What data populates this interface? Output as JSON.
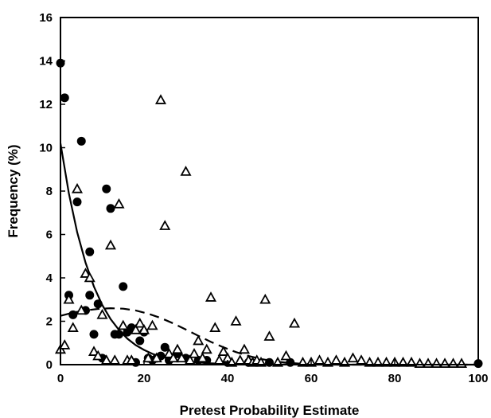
{
  "chart_data": {
    "type": "scatter",
    "xlabel": "Pretest Probability Estimate",
    "ylabel": "Frequency (%)",
    "xlim": [
      0,
      100
    ],
    "ylim": [
      0,
      16
    ],
    "x_ticks": [
      0,
      20,
      40,
      60,
      80,
      100
    ],
    "y_ticks": [
      0,
      2,
      4,
      6,
      8,
      10,
      12,
      14,
      16
    ],
    "grid": false,
    "legend": null,
    "series": [
      {
        "marker": "filled-circle",
        "color": "#000000",
        "points": [
          [
            0,
            13.9
          ],
          [
            1,
            12.3
          ],
          [
            2,
            3.2
          ],
          [
            3,
            2.3
          ],
          [
            4,
            7.5
          ],
          [
            5,
            10.3
          ],
          [
            6,
            2.5
          ],
          [
            7,
            5.2
          ],
          [
            7,
            3.2
          ],
          [
            8,
            1.4
          ],
          [
            9,
            2.8
          ],
          [
            10,
            0.3
          ],
          [
            11,
            8.1
          ],
          [
            12,
            7.2
          ],
          [
            13,
            1.4
          ],
          [
            14,
            1.4
          ],
          [
            15,
            3.6
          ],
          [
            16,
            1.5
          ],
          [
            17,
            1.7
          ],
          [
            18,
            0.1
          ],
          [
            19,
            1.1
          ],
          [
            20,
            1.5
          ],
          [
            21,
            0.3
          ],
          [
            22,
            0.2
          ],
          [
            23,
            0.3
          ],
          [
            24,
            0.4
          ],
          [
            25,
            0.8
          ],
          [
            26,
            0.2
          ],
          [
            28,
            0.5
          ],
          [
            30,
            0.3
          ],
          [
            33,
            0.2
          ],
          [
            35,
            0.2
          ],
          [
            40,
            0.1
          ],
          [
            45,
            0.1
          ],
          [
            50,
            0.1
          ],
          [
            55,
            0.1
          ],
          [
            100,
            0.05
          ]
        ]
      },
      {
        "marker": "open-triangle",
        "color": "#000000",
        "points": [
          [
            0,
            0.7
          ],
          [
            1,
            0.9
          ],
          [
            2,
            3.0
          ],
          [
            3,
            1.7
          ],
          [
            4,
            8.1
          ],
          [
            5,
            2.5
          ],
          [
            6,
            4.2
          ],
          [
            7,
            4.0
          ],
          [
            8,
            0.6
          ],
          [
            9,
            0.4
          ],
          [
            10,
            2.3
          ],
          [
            11,
            0.2
          ],
          [
            12,
            5.5
          ],
          [
            13,
            0.2
          ],
          [
            14,
            7.4
          ],
          [
            15,
            1.8
          ],
          [
            16,
            0.2
          ],
          [
            17,
            0.2
          ],
          [
            18,
            1.6
          ],
          [
            19,
            1.9
          ],
          [
            20,
            1.6
          ],
          [
            21,
            0.3
          ],
          [
            22,
            1.8
          ],
          [
            23,
            0.3
          ],
          [
            24,
            12.2
          ],
          [
            25,
            6.4
          ],
          [
            26,
            0.5
          ],
          [
            27,
            0.3
          ],
          [
            28,
            0.7
          ],
          [
            29,
            0.3
          ],
          [
            30,
            8.9
          ],
          [
            31,
            0.2
          ],
          [
            32,
            0.5
          ],
          [
            33,
            1.1
          ],
          [
            34,
            0.3
          ],
          [
            35,
            0.7
          ],
          [
            36,
            3.1
          ],
          [
            37,
            1.7
          ],
          [
            38,
            0.2
          ],
          [
            39,
            0.6
          ],
          [
            40,
            0.3
          ],
          [
            41,
            0.1
          ],
          [
            42,
            2.0
          ],
          [
            43,
            0.2
          ],
          [
            44,
            0.7
          ],
          [
            45,
            0.2
          ],
          [
            46,
            0.1
          ],
          [
            47,
            0.2
          ],
          [
            48,
            0.1
          ],
          [
            49,
            3.0
          ],
          [
            50,
            1.3
          ],
          [
            52,
            0.1
          ],
          [
            54,
            0.4
          ],
          [
            56,
            1.9
          ],
          [
            58,
            0.1
          ],
          [
            60,
            0.1
          ],
          [
            62,
            0.2
          ],
          [
            64,
            0.1
          ],
          [
            66,
            0.2
          ],
          [
            68,
            0.1
          ],
          [
            70,
            0.3
          ],
          [
            72,
            0.2
          ],
          [
            74,
            0.1
          ],
          [
            76,
            0.1
          ],
          [
            78,
            0.1
          ],
          [
            80,
            0.1
          ],
          [
            82,
            0.1
          ],
          [
            84,
            0.1
          ],
          [
            86,
            0.05
          ],
          [
            88,
            0.05
          ],
          [
            90,
            0.05
          ],
          [
            92,
            0.05
          ],
          [
            94,
            0.05
          ],
          [
            96,
            0.05
          ]
        ]
      }
    ],
    "fit_curves": [
      {
        "style": "solid",
        "color": "#000000",
        "points": [
          [
            0,
            10.2
          ],
          [
            2,
            7.9
          ],
          [
            4,
            6.1
          ],
          [
            6,
            4.7
          ],
          [
            8,
            3.6
          ],
          [
            10,
            2.75
          ],
          [
            12,
            2.1
          ],
          [
            14,
            1.6
          ],
          [
            16,
            1.2
          ],
          [
            18,
            0.9
          ],
          [
            20,
            0.68
          ],
          [
            22,
            0.5
          ],
          [
            24,
            0.37
          ],
          [
            26,
            0.27
          ],
          [
            28,
            0.2
          ],
          [
            30,
            0.15
          ],
          [
            35,
            0.07
          ],
          [
            40,
            0.03
          ],
          [
            50,
            0.01
          ],
          [
            60,
            0.0
          ],
          [
            100,
            0.0
          ]
        ]
      },
      {
        "style": "dashed",
        "color": "#000000",
        "points": [
          [
            0,
            2.25
          ],
          [
            3,
            2.4
          ],
          [
            6,
            2.5
          ],
          [
            9,
            2.57
          ],
          [
            12,
            2.6
          ],
          [
            15,
            2.58
          ],
          [
            18,
            2.5
          ],
          [
            21,
            2.35
          ],
          [
            24,
            2.15
          ],
          [
            27,
            1.9
          ],
          [
            30,
            1.62
          ],
          [
            33,
            1.33
          ],
          [
            36,
            1.05
          ],
          [
            39,
            0.8
          ],
          [
            42,
            0.58
          ],
          [
            45,
            0.4
          ],
          [
            48,
            0.26
          ],
          [
            51,
            0.16
          ],
          [
            54,
            0.09
          ],
          [
            57,
            0.05
          ],
          [
            60,
            0.02
          ],
          [
            65,
            0.0
          ],
          [
            100,
            0.0
          ]
        ]
      }
    ]
  }
}
